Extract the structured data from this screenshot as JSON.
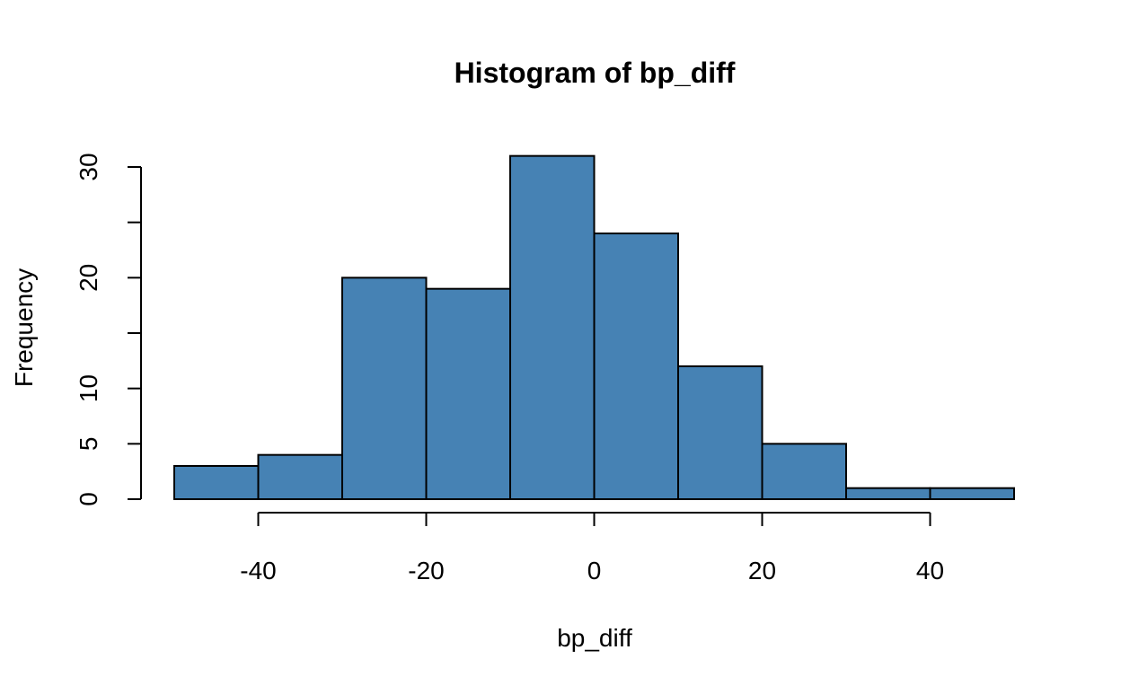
{
  "chart_data": {
    "type": "bar",
    "subtype": "histogram",
    "title": "Histogram of bp_diff",
    "xlabel": "bp_diff",
    "ylabel": "Frequency",
    "bins": [
      {
        "x0": -50,
        "x1": -40,
        "count": 3
      },
      {
        "x0": -40,
        "x1": -30,
        "count": 4
      },
      {
        "x0": -30,
        "x1": -20,
        "count": 20
      },
      {
        "x0": -20,
        "x1": -10,
        "count": 19
      },
      {
        "x0": -10,
        "x1": 0,
        "count": 31
      },
      {
        "x0": 0,
        "x1": 10,
        "count": 24
      },
      {
        "x0": 10,
        "x1": 20,
        "count": 12
      },
      {
        "x0": 20,
        "x1": 30,
        "count": 5
      },
      {
        "x0": 30,
        "x1": 40,
        "count": 1
      },
      {
        "x0": 40,
        "x1": 50,
        "count": 1
      }
    ],
    "xlim": [
      -50,
      50
    ],
    "ylim": [
      0,
      31
    ],
    "x_ticks": [
      -40,
      -20,
      0,
      20,
      40
    ],
    "x_tick_labels": [
      "-40",
      "-20",
      "0",
      "20",
      "40"
    ],
    "y_ticks": [
      0,
      5,
      10,
      15,
      20,
      25,
      30
    ],
    "y_tick_labels": [
      "0",
      "5",
      "10",
      "",
      "20",
      "",
      "30"
    ],
    "grid": false,
    "legend": "none",
    "colors": {
      "bar_fill": "#4682b4",
      "bar_stroke": "#000000",
      "axis": "#000000"
    }
  }
}
